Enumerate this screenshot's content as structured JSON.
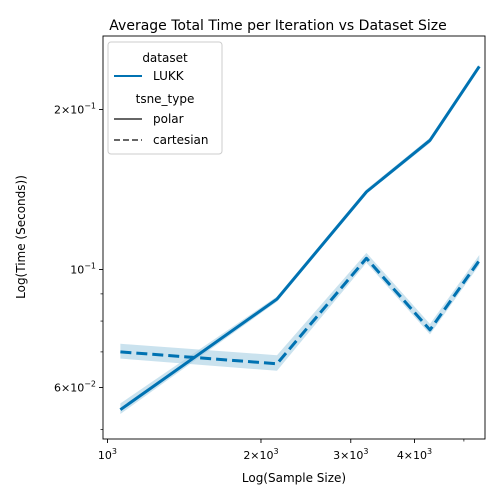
{
  "chart_data": {
    "type": "line",
    "title": "Average Total Time per Iteration vs Dataset Size",
    "xlabel": "Log(Sample Size)",
    "ylabel": "Log(Time (Seconds))",
    "xscale": "log",
    "yscale": "log",
    "xlim": [
      980,
      5500
    ],
    "ylim": [
      0.048,
      0.275
    ],
    "x_ticks": [
      {
        "value": 1000,
        "base": "10",
        "exp": "3",
        "mant": ""
      },
      {
        "value": 2000,
        "base": "10",
        "exp": "3",
        "mant": "2×"
      },
      {
        "value": 3000,
        "base": "10",
        "exp": "3",
        "mant": "3×"
      },
      {
        "value": 4000,
        "base": "10",
        "exp": "3",
        "mant": "4×"
      }
    ],
    "y_ticks": [
      {
        "value": 0.06,
        "base": "10",
        "exp": "−2",
        "mant": "6×"
      },
      {
        "value": 0.1,
        "base": "10",
        "exp": "−1",
        "mant": ""
      },
      {
        "value": 0.2,
        "base": "10",
        "exp": "−1",
        "mant": "2×"
      }
    ],
    "x_minor": [
      5000
    ],
    "y_minor": [
      0.05,
      0.07,
      0.08,
      0.09
    ],
    "grid": false,
    "legend": {
      "placement": "top-left",
      "hue_title": "dataset",
      "hue_entries": [
        "LUKK"
      ],
      "style_title": "tsne_type",
      "style_entries": [
        "polar",
        "cartesian"
      ]
    },
    "colors": {
      "line": "#0072b2",
      "band": "#a6cee3",
      "legend_dark": "#333333"
    },
    "series": [
      {
        "dataset": "LUKK",
        "style": "polar",
        "x": [
          1060,
          2150,
          3220,
          4290,
          5360
        ],
        "y": [
          0.0545,
          0.088,
          0.14,
          0.175,
          0.241
        ],
        "ci_low": [
          0.0535,
          0.087,
          0.139,
          0.173,
          0.239
        ],
        "ci_high": [
          0.056,
          0.089,
          0.1415,
          0.177,
          0.243
        ]
      },
      {
        "dataset": "LUKK",
        "style": "cartesian",
        "x": [
          1060,
          2150,
          3220,
          4290,
          5360
        ],
        "y": [
          0.07,
          0.0665,
          0.105,
          0.077,
          0.104
        ],
        "ci_low": [
          0.068,
          0.0645,
          0.103,
          0.0755,
          0.102
        ],
        "ci_high": [
          0.0725,
          0.069,
          0.1075,
          0.079,
          0.1065
        ]
      }
    ]
  }
}
